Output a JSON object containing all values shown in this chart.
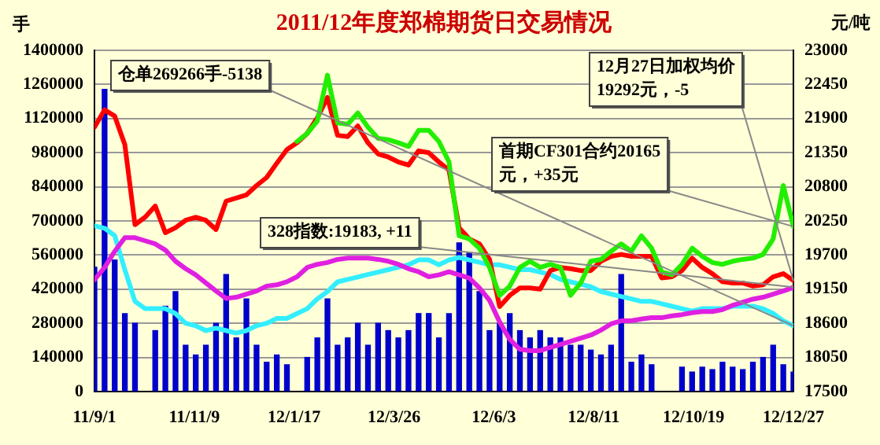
{
  "chart_data": {
    "type": "bar",
    "title": "2011/12年度郑棉期货日交易情况",
    "ylabel": "手",
    "y2label": "元/吨",
    "x": [
      "2011-09-01",
      "2011-09-08",
      "2011-09-15",
      "2011-09-22",
      "2011-09-29",
      "2011-10-06",
      "2011-10-13",
      "2011-10-20",
      "2011-10-27",
      "2011-11-03",
      "2011-11-10",
      "2011-11-17",
      "2011-11-24",
      "2011-12-01",
      "2011-12-08",
      "2011-12-15",
      "2011-12-22",
      "2011-12-29",
      "2012-01-05",
      "2012-01-12",
      "2012-01-19",
      "2012-01-26",
      "2012-02-02",
      "2012-02-09",
      "2012-02-16",
      "2012-02-23",
      "2012-03-01",
      "2012-03-08",
      "2012-03-15",
      "2012-03-22",
      "2012-03-29",
      "2012-04-05",
      "2012-04-12",
      "2012-04-19",
      "2012-04-26",
      "2012-05-03",
      "2012-05-10",
      "2012-05-17",
      "2012-05-24",
      "2012-05-31",
      "2012-06-07",
      "2012-06-14",
      "2012-06-21",
      "2012-06-28",
      "2012-07-05",
      "2012-07-12",
      "2012-07-19",
      "2012-07-26",
      "2012-08-02",
      "2012-08-09",
      "2012-08-16",
      "2012-08-23",
      "2012-08-30",
      "2012-09-06",
      "2012-09-13",
      "2012-09-20",
      "2012-09-27",
      "2012-10-04",
      "2012-10-11",
      "2012-10-18",
      "2012-10-25",
      "2012-11-01",
      "2012-11-08",
      "2012-11-15",
      "2012-11-22",
      "2012-11-29",
      "2012-12-06",
      "2012-12-13",
      "2012-12-20",
      "2012-12-27"
    ],
    "xlim": [
      "2011-09-01",
      "2012-12-27"
    ],
    "xticks": [
      {
        "value": "2011-09-01",
        "label": "11/9/1"
      },
      {
        "value": "2011-11-09",
        "label": "11/11/9"
      },
      {
        "value": "2012-01-17",
        "label": "12/1/17"
      },
      {
        "value": "2012-03-26",
        "label": "12/3/26"
      },
      {
        "value": "2012-06-03",
        "label": "12/6/3"
      },
      {
        "value": "2012-08-11",
        "label": "12/8/11"
      },
      {
        "value": "2012-10-19",
        "label": "12/10/19"
      },
      {
        "value": "2012-12-27",
        "label": "12/12/27"
      }
    ],
    "ylim": [
      0,
      1400000
    ],
    "yticks": [
      0,
      140000,
      280000,
      420000,
      560000,
      700000,
      840000,
      980000,
      1120000,
      1260000,
      1400000
    ],
    "y2lim": [
      17500,
      23000
    ],
    "y2ticks": [
      17500,
      18050,
      18600,
      19150,
      19700,
      20250,
      20800,
      21350,
      21900,
      22450,
      23000
    ],
    "grid": "y",
    "series": [
      {
        "color": "#0000cc",
        "values": [
          510000,
          1240000,
          540000,
          320000,
          280000,
          null,
          250000,
          350000,
          410000,
          190000,
          150000,
          190000,
          280000,
          480000,
          220000,
          380000,
          190000,
          120000,
          150000,
          110000,
          null,
          140000,
          220000,
          380000,
          190000,
          220000,
          280000,
          190000,
          280000,
          250000,
          220000,
          250000,
          320000,
          320000,
          220000,
          320000,
          610000,
          570000,
          410000,
          250000,
          280000,
          320000,
          250000,
          220000,
          250000,
          220000,
          220000,
          190000,
          190000,
          170000,
          150000,
          190000,
          480000,
          120000,
          150000,
          110000,
          null,
          null,
          100000,
          80000,
          100000,
          90000,
          120000,
          100000,
          90000,
          120000,
          140000,
          190000,
          110000,
          80000
        ]
      },
      {
        "type": "line",
        "color": "#33eeff",
        "values": [
          680000,
          670000,
          640000,
          500000,
          370000,
          340000,
          340000,
          340000,
          320000,
          280000,
          270000,
          250000,
          260000,
          250000,
          240000,
          250000,
          270000,
          280000,
          300000,
          300000,
          320000,
          340000,
          380000,
          410000,
          450000,
          460000,
          470000,
          480000,
          490000,
          500000,
          510000,
          520000,
          540000,
          540000,
          520000,
          540000,
          550000,
          540000,
          530000,
          520000,
          520000,
          510000,
          500000,
          500000,
          490000,
          480000,
          460000,
          450000,
          440000,
          430000,
          410000,
          400000,
          390000,
          380000,
          370000,
          370000,
          360000,
          350000,
          340000,
          330000,
          340000,
          340000,
          340000,
          350000,
          350000,
          350000,
          340000,
          320000,
          290000,
          270000
        ]
      },
      {
        "type": "line",
        "axis": "y2",
        "color": "#e020e0",
        "values": [
          19300,
          19500,
          19760,
          19980,
          19980,
          19930,
          19880,
          19780,
          19600,
          19480,
          19380,
          19250,
          19120,
          19000,
          19020,
          19070,
          19120,
          19200,
          19220,
          19270,
          19350,
          19500,
          19550,
          19580,
          19630,
          19650,
          19650,
          19650,
          19630,
          19600,
          19550,
          19480,
          19430,
          19350,
          19380,
          19430,
          19380,
          19330,
          19170,
          18970,
          18620,
          18340,
          18180,
          18160,
          18160,
          18210,
          18260,
          18310,
          18360,
          18410,
          18490,
          18590,
          18640,
          18640,
          18670,
          18690,
          18690,
          18720,
          18740,
          18770,
          18790,
          18790,
          18820,
          18890,
          18940,
          18990,
          19020,
          19070,
          19120,
          19180
        ]
      },
      {
        "type": "line",
        "axis": "y2",
        "color": "#ff0000",
        "values": [
          21760,
          22040,
          21940,
          21480,
          20190,
          20310,
          20490,
          20060,
          20140,
          20260,
          20310,
          20260,
          20110,
          20570,
          20620,
          20670,
          20820,
          20950,
          21180,
          21400,
          21510,
          21660,
          21910,
          22240,
          21630,
          21610,
          21780,
          21510,
          21330,
          21280,
          21200,
          21150,
          21380,
          21350,
          21200,
          21070,
          20140,
          19960,
          19880,
          19630,
          18870,
          19050,
          19170,
          19170,
          19150,
          19450,
          19500,
          19480,
          19450,
          19450,
          19600,
          19680,
          19710,
          19680,
          19680,
          19680,
          19330,
          19350,
          19450,
          19650,
          19500,
          19400,
          19270,
          19250,
          19250,
          19200,
          19220,
          19350,
          19400,
          19290
        ]
      },
      {
        "type": "line",
        "axis": "y2",
        "color": "#22ee00",
        "values": [
          null,
          null,
          null,
          null,
          null,
          null,
          null,
          null,
          null,
          null,
          null,
          null,
          null,
          null,
          null,
          null,
          null,
          null,
          null,
          null,
          21530,
          21660,
          21860,
          22600,
          21830,
          21810,
          21990,
          21760,
          21580,
          21560,
          21510,
          21450,
          21710,
          21710,
          21530,
          21200,
          20010,
          19960,
          19810,
          19500,
          19050,
          19200,
          19500,
          19600,
          19500,
          19550,
          19500,
          19050,
          19250,
          19600,
          19630,
          19760,
          19880,
          19760,
          20010,
          19810,
          19430,
          19380,
          19550,
          19810,
          19680,
          19580,
          19550,
          19600,
          19630,
          19650,
          19710,
          19960,
          20820,
          20160
        ]
      }
    ],
    "annotations": [
      {
        "text": "仓单269266手-5138",
        "x": "2012-12-27",
        "y": 270000
      },
      {
        "text": "12月27日加权均价19292元，-5",
        "x": "2012-12-27",
        "y": 455000
      },
      {
        "text": "首期CF301合约20165元，+35元",
        "x": "2012-12-27",
        "y": 677000
      },
      {
        "text": "328指数:19183, +11",
        "x": "2012-12-27",
        "y": 428000
      }
    ]
  }
}
